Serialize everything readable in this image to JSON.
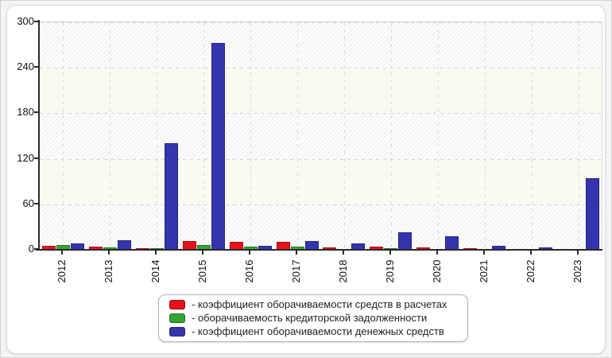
{
  "chart_data": {
    "type": "bar",
    "title": "",
    "categories": [
      "2012",
      "2013",
      "2014",
      "2015",
      "2016",
      "2017",
      "2018",
      "2019",
      "2020",
      "2021",
      "2022",
      "2023"
    ],
    "series": [
      {
        "name": "- коэффициент оборачиваемости средств в расчетах",
        "color": "#e8111b",
        "values": [
          4.9,
          4.2,
          2.0,
          11.5,
          10.0,
          10.4,
          3.1,
          3.8,
          2.9,
          2.2,
          1.2,
          1.0
        ]
      },
      {
        "name": "- оборачиваемость кредиторской задолженности",
        "color": "#33a433",
        "values": [
          6.5,
          3.0,
          2.0,
          6.5,
          3.9,
          3.8,
          1.4,
          1.9,
          1.5,
          1.4,
          0.8,
          0.7
        ]
      },
      {
        "name": "- коэффициент оборачиваемости денежных средств",
        "color": "#3434ae",
        "values": [
          8.4,
          12.9,
          141,
          273,
          5.7,
          11.5,
          8.4,
          23.4,
          17.5,
          5.2,
          2.8,
          94
        ]
      }
    ],
    "xlabel": "",
    "ylabel": "",
    "ylim": [
      0,
      300
    ],
    "yticks": [
      0,
      60,
      120,
      180,
      240,
      300
    ],
    "grid": true,
    "band_interval": 60,
    "legend_position": "bottom-center"
  }
}
